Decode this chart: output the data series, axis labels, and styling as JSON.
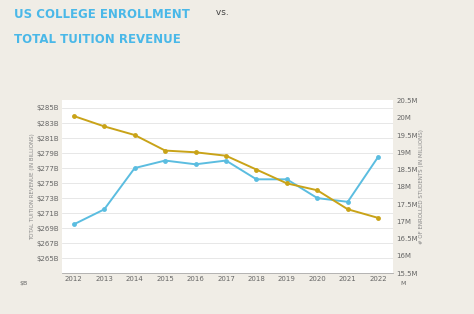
{
  "title_line1": "US COLLEGE ENROLLMENT",
  "title_vs": " vs.",
  "title_line2": "TOTAL TUITION REVENUE",
  "title_color1": "#4ab8e8",
  "title_color2": "#444444",
  "years": [
    2012,
    2013,
    2014,
    2015,
    2016,
    2017,
    2018,
    2019,
    2020,
    2021,
    2022
  ],
  "tuition_revenue_billions": [
    269.5,
    271.5,
    277.0,
    278.0,
    277.5,
    278.0,
    275.5,
    275.5,
    273.0,
    272.5,
    278.5
  ],
  "enrollment_millions": [
    20.05,
    19.75,
    19.5,
    19.05,
    19.0,
    18.9,
    18.5,
    18.1,
    17.9,
    17.35,
    17.1
  ],
  "revenue_color": "#5bbde0",
  "enrollment_color": "#c9a318",
  "bg_color": "#f0ede6",
  "plot_bg_color": "#ffffff",
  "grid_color": "#dddddd",
  "ylabel_left": "TOTAL TUITION REVENUE (IN BILLIONS)",
  "ylabel_right": "# OF ENROLLED STUDENTS (IN MILLIONS)",
  "ylim_left": [
    263,
    286
  ],
  "ylim_right": [
    15.5,
    20.5
  ],
  "yticks_left": [
    265,
    267,
    269,
    271,
    273,
    275,
    277,
    279,
    281,
    283,
    285
  ],
  "yticks_right": [
    15.5,
    16.0,
    16.5,
    17.0,
    17.5,
    18.0,
    18.5,
    19.0,
    19.5,
    20.0,
    20.5
  ],
  "ytick_labels_left": [
    "$265B",
    "$267B",
    "$269B",
    "$271B",
    "$273B",
    "$275B",
    "$277B",
    "$279B",
    "$281B",
    "$283B",
    "$285B"
  ],
  "ytick_labels_right": [
    "15.5M",
    "16M",
    "16.5M",
    "17M",
    "17.5M",
    "18M",
    "18.5M",
    "19M",
    "19.5M",
    "20M",
    "20.5M"
  ],
  "marker_size": 3.5,
  "linewidth": 1.4
}
